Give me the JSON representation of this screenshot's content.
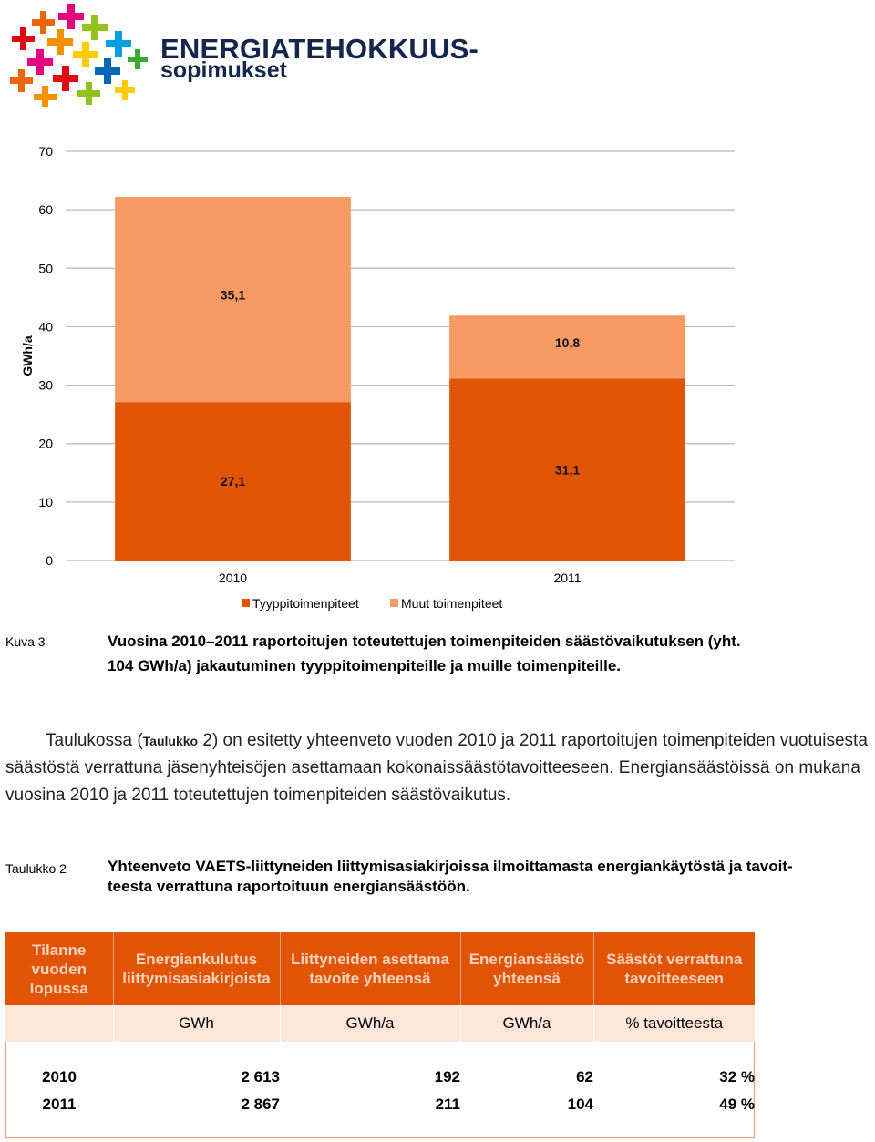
{
  "logo": {
    "line1": "ENERGIATEHOKKUUS-",
    "line2": "sopimukset"
  },
  "chart_data": {
    "type": "bar",
    "stacked": true,
    "categories": [
      "2010",
      "2011"
    ],
    "series": [
      {
        "name": "Tyyppitoimenpiteet",
        "values": [
          27.1,
          31.1
        ],
        "labels": [
          "27,1",
          "31,1"
        ],
        "color": "#e15405"
      },
      {
        "name": "Muut toimenpiteet",
        "values": [
          35.1,
          10.8
        ],
        "labels": [
          "35,1",
          "10,8"
        ],
        "color": "#f79a63"
      }
    ],
    "ylabel": "GWh/a",
    "ylim": [
      0,
      70
    ],
    "yticks": [
      0,
      10,
      20,
      30,
      40,
      50,
      60,
      70
    ],
    "grid": true,
    "legend": "bottom"
  },
  "figure_caption": {
    "label": "Kuva 3",
    "line1": "Vuosina 2010–2011 raportoitujen toteutettujen toimenpiteiden säästövaikutuksen (yht.",
    "line2": "104 GWh/a) jakautuminen tyyppitoimenpiteille ja muille toimenpiteille."
  },
  "paragraph": {
    "part1": "Taulukossa (",
    "ref": "Taulukko",
    "part2": " 2) on esitetty yhteenveto vuoden 2010 ja 2011 raportoitujen toimenpiteiden vuotuisesta säästöstä verrattuna jäsenyhteisöjen asettamaan kokonaissäästötavoitteeseen. Energiansäästöissä on mukana vuosina 2010 ja 2011 toteutettujen toimenpiteiden säästövaikutus."
  },
  "table_caption": {
    "label": "Taulukko 2",
    "line1": "Yhteenveto VAETS-liittyneiden liittymisasiakirjoissa ilmoittamasta energiankäytöstä ja tavoit-",
    "line2": "teesta verrattuna raportoituun energiansäästöön."
  },
  "table": {
    "headers": [
      "Tilanne vuoden lopussa",
      "Energiankulutus liittymisasiakirjoista",
      "Liittyneiden asettama tavoite yhteensä",
      "Energiansäästö yhteensä",
      "Säästöt verrattuna tavoitteeseen"
    ],
    "units": [
      "",
      "GWh",
      "GWh/a",
      "GWh/a",
      "% tavoitteesta"
    ],
    "rows": [
      [
        "2010",
        "2 613",
        "192",
        "62",
        "32 %"
      ],
      [
        "2011",
        "2 867",
        "211",
        "104",
        "49 %"
      ]
    ]
  },
  "colors": {
    "accent": "#e15405",
    "light_accent": "#f79a63",
    "table_unit_bg": "#fde7d9",
    "logo_text": "#14264e"
  }
}
